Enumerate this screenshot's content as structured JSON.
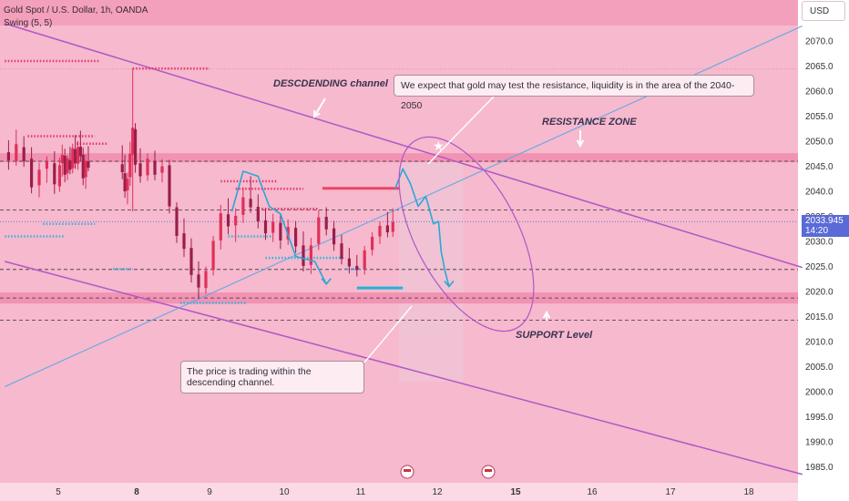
{
  "header": {
    "symbol": "Gold Spot / U.S. Dollar, 1h, OANDA",
    "indicator": "Swing (5, 5)",
    "currency": "USD"
  },
  "price_tag": {
    "price": "2033.945",
    "countdown": "14:20"
  },
  "annotations": {
    "channel_label": "DESCDENDING channel",
    "resistance_label": "RESISTANCE ZONE",
    "support_label": "SUPPORT Level",
    "callout_top": "We expect that gold may test the resistance, liquidity is in the area of the 2040-2050",
    "callout_bottom": "The price is trading within the descending channel."
  },
  "colors": {
    "background": "#f6b9cd",
    "bull": "#e0305a",
    "bear": "#9b1e4a",
    "zone": "#f08cae",
    "channel": "#b057c8",
    "projection": "#2aa7d8",
    "trendline": "#5aa8e8",
    "swing_high": "#ff2e5e",
    "swing_low": "#33b5dd",
    "price_tag": "#5a6ad6"
  },
  "chart_data": {
    "type": "candlestick",
    "y_axis": {
      "min": 1982.5,
      "max": 2075,
      "ticks": [
        2070,
        2065,
        2060,
        2055,
        2050,
        2045,
        2040,
        2035,
        2030,
        2025,
        2020,
        2015,
        2010,
        2005,
        2000,
        1995,
        1990,
        1985
      ]
    },
    "x_axis": {
      "labels": [
        {
          "label": "5",
          "day": 5
        },
        {
          "label": "8",
          "day": 8,
          "bold": true
        },
        {
          "label": "9",
          "day": 9
        },
        {
          "label": "10",
          "day": 10
        },
        {
          "label": "11",
          "day": 11
        },
        {
          "label": "12",
          "day": 12
        },
        {
          "label": "15",
          "day": 15,
          "bold": true
        },
        {
          "label": "16",
          "day": 16
        },
        {
          "label": "17",
          "day": 17
        },
        {
          "label": "18",
          "day": 18
        }
      ]
    },
    "current_price": 2033.945,
    "resistance_zone": [
      2045.8,
      2047.6
    ],
    "support_zone": [
      2017.6,
      2019.8
    ],
    "dashed_levels": [
      2046.0,
      2036.3,
      2024.4,
      2018.7,
      2014.3
    ],
    "descending_channel": {
      "upper": [
        {
          "day": 4.3,
          "price": 2073.5
        },
        {
          "day": 18.7,
          "price": 2024.8
        }
      ],
      "lower": [
        {
          "day": 4.3,
          "price": 2026.0
        },
        {
          "day": 18.7,
          "price": 1983.5
        }
      ]
    },
    "trendline": [
      {
        "day": 4.3,
        "price": 2001.0
      },
      {
        "day": 18.7,
        "price": 2073.0
      }
    ],
    "projection_path": [
      {
        "day": 11.45,
        "price": 2040.5
      },
      {
        "day": 11.55,
        "price": 2044.5
      },
      {
        "day": 11.65,
        "price": 2041.5
      },
      {
        "day": 11.75,
        "price": 2037.0
      },
      {
        "day": 11.85,
        "price": 2039.0
      },
      {
        "day": 11.95,
        "price": 2033.5
      },
      {
        "day": 12.05,
        "price": 2034.0
      },
      {
        "day": 12.15,
        "price": 2028.0
      },
      {
        "day": 12.3,
        "price": 2024.0
      },
      {
        "day": 12.45,
        "price": 2021.0
      }
    ],
    "left_projection": [
      {
        "day": 9.3,
        "price": 2036.0
      },
      {
        "day": 9.45,
        "price": 2044.0
      },
      {
        "day": 9.65,
        "price": 2043.0
      },
      {
        "day": 9.8,
        "price": 2037.0
      },
      {
        "day": 9.95,
        "price": 2035.5
      },
      {
        "day": 10.15,
        "price": 2027.0
      },
      {
        "day": 10.4,
        "price": 2026.0
      },
      {
        "day": 10.55,
        "price": 2021.5
      }
    ],
    "candles": [
      {
        "day": 4.35,
        "open": 2047.8,
        "high": 2050.2,
        "low": 2044.3,
        "close": 2046.2
      },
      {
        "day": 4.45,
        "open": 2046.0,
        "high": 2052.3,
        "low": 2045.1,
        "close": 2049.4
      },
      {
        "day": 4.55,
        "open": 2048.8,
        "high": 2051.0,
        "low": 2044.9,
        "close": 2046.0
      },
      {
        "day": 4.65,
        "open": 2046.5,
        "high": 2048.8,
        "low": 2039.6,
        "close": 2040.8
      },
      {
        "day": 4.75,
        "open": 2041.2,
        "high": 2045.7,
        "low": 2038.8,
        "close": 2044.3
      },
      {
        "day": 4.85,
        "open": 2044.5,
        "high": 2047.0,
        "low": 2041.7,
        "close": 2045.9
      },
      {
        "day": 4.95,
        "open": 2045.6,
        "high": 2048.0,
        "low": 2039.5,
        "close": 2041.4
      },
      {
        "day": 5.05,
        "open": 2041.0,
        "high": 2046.7,
        "low": 2039.9,
        "close": 2045.2
      },
      {
        "day": 5.15,
        "open": 2045.6,
        "high": 2049.3,
        "low": 2042.9,
        "close": 2047.3
      },
      {
        "day": 5.25,
        "open": 2047.1,
        "high": 2048.5,
        "low": 2041.8,
        "close": 2043.3
      },
      {
        "day": 5.35,
        "open": 2043.6,
        "high": 2047.2,
        "low": 2042.2,
        "close": 2046.6
      },
      {
        "day": 5.45,
        "open": 2046.2,
        "high": 2048.9,
        "low": 2043.4,
        "close": 2044.3
      },
      {
        "day": 5.55,
        "open": 2044.6,
        "high": 2049.5,
        "low": 2043.6,
        "close": 2048.6
      },
      {
        "day": 5.65,
        "open": 2048.4,
        "high": 2051.2,
        "low": 2044.5,
        "close": 2045.6
      },
      {
        "day": 5.75,
        "open": 2045.5,
        "high": 2050.0,
        "low": 2044.3,
        "close": 2048.8
      },
      {
        "day": 5.85,
        "open": 2048.9,
        "high": 2052.1,
        "low": 2045.9,
        "close": 2047.0
      },
      {
        "day": 5.95,
        "open": 2047.3,
        "high": 2048.7,
        "low": 2041.2,
        "close": 2042.6
      },
      {
        "day": 6.05,
        "open": 2042.8,
        "high": 2047.4,
        "low": 2040.5,
        "close": 2046.1
      },
      {
        "day": 6.15,
        "open": 2046.0,
        "high": 2049.0,
        "low": 2044.0,
        "close": 2044.7
      },
      {
        "day": 7.45,
        "open": 2045.4,
        "high": 2049.2,
        "low": 2042.4,
        "close": 2043.8
      },
      {
        "day": 7.55,
        "open": 2043.6,
        "high": 2047.3,
        "low": 2038.7,
        "close": 2040.0
      },
      {
        "day": 7.65,
        "open": 2040.2,
        "high": 2043.7,
        "low": 2037.4,
        "close": 2042.5
      },
      {
        "day": 7.75,
        "open": 2042.8,
        "high": 2049.9,
        "low": 2041.1,
        "close": 2047.5
      },
      {
        "day": 7.85,
        "open": 2047.3,
        "high": 2064.5,
        "low": 2036.0,
        "close": 2052.7
      },
      {
        "day": 7.95,
        "open": 2052.4,
        "high": 2053.6,
        "low": 2043.7,
        "close": 2045.3
      },
      {
        "day": 8.05,
        "open": 2045.6,
        "high": 2048.6,
        "low": 2041.7,
        "close": 2043.0
      },
      {
        "day": 8.15,
        "open": 2043.2,
        "high": 2047.6,
        "low": 2042.1,
        "close": 2046.5
      },
      {
        "day": 8.25,
        "open": 2046.1,
        "high": 2048.1,
        "low": 2042.2,
        "close": 2043.3
      },
      {
        "day": 8.35,
        "open": 2043.7,
        "high": 2046.4,
        "low": 2041.8,
        "close": 2045.0
      },
      {
        "day": 8.45,
        "open": 2045.2,
        "high": 2046.3,
        "low": 2035.6,
        "close": 2037.0
      },
      {
        "day": 8.55,
        "open": 2036.8,
        "high": 2037.8,
        "low": 2029.7,
        "close": 2031.1
      },
      {
        "day": 8.65,
        "open": 2031.6,
        "high": 2034.6,
        "low": 2026.9,
        "close": 2028.5
      },
      {
        "day": 8.75,
        "open": 2028.7,
        "high": 2030.6,
        "low": 2021.8,
        "close": 2023.3
      },
      {
        "day": 8.85,
        "open": 2023.4,
        "high": 2026.0,
        "low": 2018.6,
        "close": 2020.8
      },
      {
        "day": 8.95,
        "open": 2020.7,
        "high": 2025.0,
        "low": 2019.6,
        "close": 2024.1
      },
      {
        "day": 9.05,
        "open": 2024.3,
        "high": 2031.1,
        "low": 2023.2,
        "close": 2030.1
      },
      {
        "day": 9.15,
        "open": 2030.2,
        "high": 2037.3,
        "low": 2028.4,
        "close": 2035.6
      },
      {
        "day": 9.25,
        "open": 2035.4,
        "high": 2038.6,
        "low": 2031.4,
        "close": 2033.0
      },
      {
        "day": 9.35,
        "open": 2033.2,
        "high": 2036.6,
        "low": 2029.9,
        "close": 2035.1
      },
      {
        "day": 9.45,
        "open": 2035.3,
        "high": 2040.8,
        "low": 2033.7,
        "close": 2038.8
      },
      {
        "day": 9.55,
        "open": 2038.5,
        "high": 2043.0,
        "low": 2035.7,
        "close": 2036.8
      },
      {
        "day": 9.65,
        "open": 2036.9,
        "high": 2039.4,
        "low": 2032.6,
        "close": 2034.0
      },
      {
        "day": 9.75,
        "open": 2034.2,
        "high": 2036.5,
        "low": 2030.3,
        "close": 2031.6
      },
      {
        "day": 9.85,
        "open": 2031.7,
        "high": 2035.5,
        "low": 2029.9,
        "close": 2033.9
      },
      {
        "day": 9.95,
        "open": 2033.7,
        "high": 2035.4,
        "low": 2028.5,
        "close": 2030.2
      },
      {
        "day": 10.05,
        "open": 2030.4,
        "high": 2034.4,
        "low": 2029.3,
        "close": 2032.9
      },
      {
        "day": 10.15,
        "open": 2032.7,
        "high": 2034.1,
        "low": 2027.7,
        "close": 2029.0
      },
      {
        "day": 10.25,
        "open": 2029.2,
        "high": 2032.0,
        "low": 2024.0,
        "close": 2025.1
      },
      {
        "day": 10.35,
        "open": 2025.3,
        "high": 2030.7,
        "low": 2023.5,
        "close": 2029.2
      },
      {
        "day": 10.45,
        "open": 2029.5,
        "high": 2036.2,
        "low": 2028.3,
        "close": 2034.8
      },
      {
        "day": 10.55,
        "open": 2034.9,
        "high": 2036.8,
        "low": 2031.2,
        "close": 2032.4
      },
      {
        "day": 10.65,
        "open": 2032.6,
        "high": 2034.1,
        "low": 2028.1,
        "close": 2029.4
      },
      {
        "day": 10.75,
        "open": 2029.6,
        "high": 2031.3,
        "low": 2025.4,
        "close": 2026.5
      },
      {
        "day": 10.85,
        "open": 2026.6,
        "high": 2028.7,
        "low": 2023.6,
        "close": 2025.0
      },
      {
        "day": 10.95,
        "open": 2025.1,
        "high": 2027.3,
        "low": 2023.0,
        "close": 2024.3
      },
      {
        "day": 11.05,
        "open": 2024.5,
        "high": 2029.1,
        "low": 2023.4,
        "close": 2028.2
      },
      {
        "day": 11.15,
        "open": 2028.3,
        "high": 2031.8,
        "low": 2027.2,
        "close": 2030.9
      },
      {
        "day": 11.25,
        "open": 2031.0,
        "high": 2034.0,
        "low": 2029.5,
        "close": 2033.1
      },
      {
        "day": 11.35,
        "open": 2033.2,
        "high": 2035.9,
        "low": 2030.8,
        "close": 2031.8
      },
      {
        "day": 11.42,
        "open": 2031.9,
        "high": 2036.6,
        "low": 2030.9,
        "close": 2033.9
      }
    ]
  }
}
